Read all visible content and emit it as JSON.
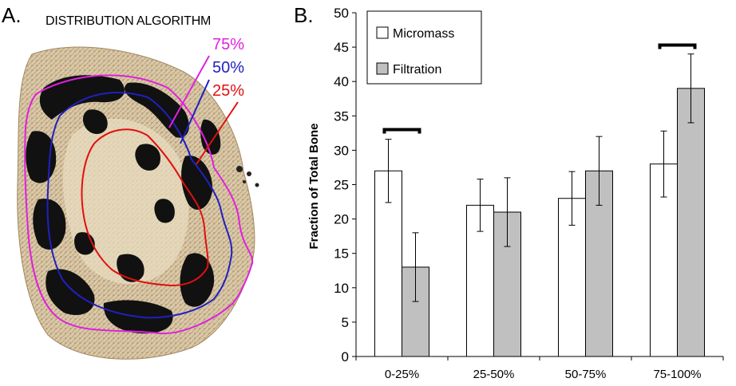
{
  "panel_a": {
    "letter": "A.",
    "title": "DISTRIBUTION ALGORITHM",
    "contours": [
      {
        "label": "75%",
        "color": "#e020e0"
      },
      {
        "label": "50%",
        "color": "#2020c0"
      },
      {
        "label": "25%",
        "color": "#e01010"
      }
    ]
  },
  "panel_b": {
    "letter": "B."
  },
  "chart_data": {
    "type": "bar",
    "title": "",
    "xlabel": "",
    "ylabel": "Fraction of Total Bone",
    "ylim": [
      0,
      50
    ],
    "yticks": [
      "0",
      "5",
      "10",
      "15",
      "20",
      "25",
      "30",
      "35",
      "40",
      "45",
      "50"
    ],
    "categories": [
      "0-25%",
      "25-50%",
      "50-75%",
      "75-100%"
    ],
    "series": [
      {
        "name": "Micromass",
        "color": "#ffffff",
        "values": [
          27,
          22,
          23,
          28
        ],
        "errors": [
          4.6,
          3.8,
          3.9,
          4.8
        ]
      },
      {
        "name": "Filtration",
        "color": "#c0c0c0",
        "values": [
          13,
          21,
          27,
          39
        ],
        "errors": [
          5,
          5,
          5,
          5
        ]
      }
    ],
    "significance_brackets": [
      {
        "category": "0-25%",
        "y": 33
      },
      {
        "category": "75-100%",
        "y": 45.3
      }
    ],
    "legend_position": "top-left",
    "grid": false
  }
}
